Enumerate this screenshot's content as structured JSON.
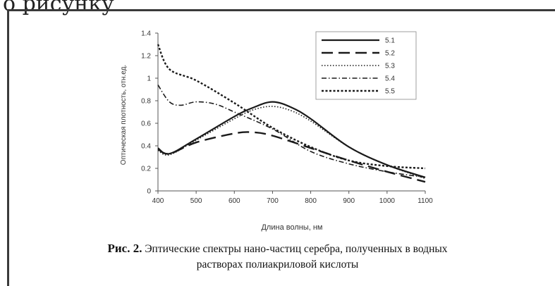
{
  "top_text": "о рисунку",
  "caption": {
    "figure_label": "Рис. 2.",
    "line1": "Эптические спектры нано-частиц серебра, полученных в водных",
    "line2": "растворах полиакриловой кислоты"
  },
  "chart_data": {
    "type": "line",
    "xlabel": "Длина волны, нм",
    "ylabel": "Оптическая плотность, отн.ед.",
    "xlim": [
      400,
      1100
    ],
    "ylim": [
      0,
      1.4
    ],
    "x_ticks": [
      "400",
      "500",
      "600",
      "700",
      "800",
      "900",
      "1000",
      "1100"
    ],
    "y_ticks": [
      "0",
      "0.2",
      "0.4",
      "0.6",
      "0.8",
      "1",
      "1.2",
      "1.4"
    ],
    "grid": false,
    "legend_position": "top-right",
    "series": [
      {
        "name": "5.1",
        "style": "solid",
        "x": [
          400,
          430,
          500,
          600,
          650,
          700,
          750,
          800,
          900,
          1000,
          1100
        ],
        "y": [
          0.38,
          0.33,
          0.46,
          0.66,
          0.74,
          0.79,
          0.74,
          0.64,
          0.39,
          0.23,
          0.12
        ]
      },
      {
        "name": "5.2",
        "style": "long-dash",
        "x": [
          400,
          430,
          500,
          600,
          650,
          700,
          800,
          900,
          1000,
          1100
        ],
        "y": [
          0.37,
          0.33,
          0.43,
          0.51,
          0.52,
          0.49,
          0.38,
          0.27,
          0.17,
          0.08
        ]
      },
      {
        "name": "5.3",
        "style": "dotted",
        "x": [
          400,
          430,
          500,
          600,
          650,
          700,
          750,
          800,
          900,
          1000,
          1100
        ],
        "y": [
          0.36,
          0.32,
          0.45,
          0.64,
          0.72,
          0.75,
          0.71,
          0.62,
          0.39,
          0.23,
          0.11
        ]
      },
      {
        "name": "5.4",
        "style": "dash-dot",
        "x": [
          400,
          430,
          460,
          500,
          550,
          600,
          700,
          800,
          900,
          1000,
          1100
        ],
        "y": [
          0.94,
          0.79,
          0.76,
          0.79,
          0.77,
          0.7,
          0.55,
          0.35,
          0.24,
          0.17,
          0.12
        ]
      },
      {
        "name": "5.5",
        "style": "short-dash",
        "x": [
          400,
          430,
          500,
          600,
          700,
          800,
          900,
          1000,
          1100
        ],
        "y": [
          1.3,
          1.08,
          0.98,
          0.78,
          0.56,
          0.39,
          0.27,
          0.22,
          0.2
        ]
      }
    ]
  }
}
